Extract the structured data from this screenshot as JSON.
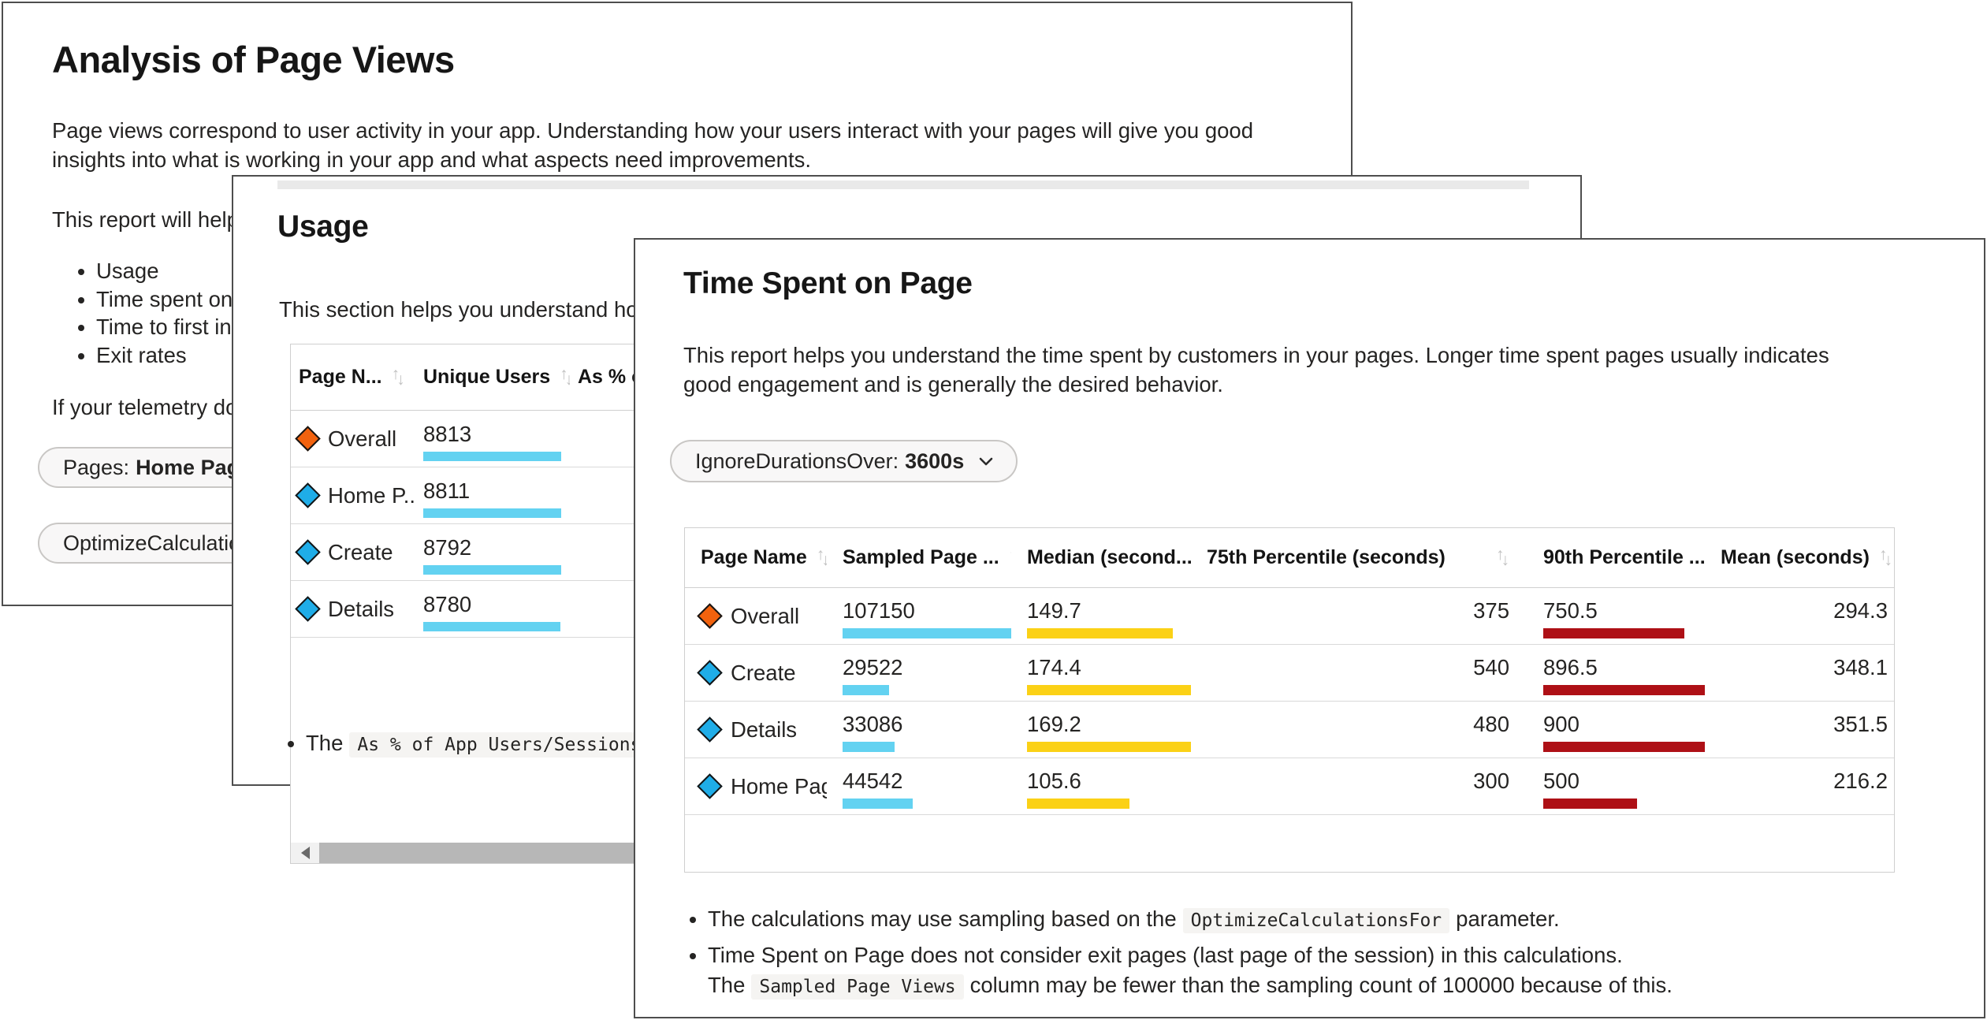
{
  "colors": {
    "bar_cyan": "#63d2f1",
    "bar_yellow": "#fbd116",
    "bar_red": "#ae1016",
    "series_overall": "#f2620e",
    "series_page": "#1fade8"
  },
  "icons": {
    "sort_up": "↑",
    "sort_down": "↓"
  },
  "analysis_card": {
    "title": "Analysis of Page Views",
    "intro": "Page views correspond to user activity in your app. Understanding how your users interact with your pages will give you good insights into what is working in your app and what aspects need improvements.",
    "report_help": "This report will help",
    "bullets": {
      "b0": "Usage",
      "b1": "Time spent on p",
      "b2": "Time to first int",
      "b3": "Exit rates"
    },
    "telemetry": "If your telemetry do",
    "pages_pill": {
      "label": "Pages:",
      "value": "Home Page, D"
    },
    "optimize_pill": {
      "label": "OptimizeCalculations"
    }
  },
  "usage_card": {
    "title": "Usage",
    "description": "This section helps you understand how",
    "table": {
      "headers": {
        "page": "Page N...",
        "users": "Unique Users",
        "pct": "As % of"
      },
      "rows": [
        {
          "page": "Overall",
          "users": 8813
        },
        {
          "page": "Home P...",
          "users": 8811
        },
        {
          "page": "Create",
          "users": 8792
        },
        {
          "page": "Details",
          "users": 8780
        }
      ]
    },
    "note_prefix": "The",
    "note_code": "As % of App Users/Sessions/V"
  },
  "time_spent_card": {
    "title": "Time Spent on Page",
    "description": "This report helps you understand the time spent by customers in your pages. Longer time spent pages usually indicates good engagement and is generally the desired behavior.",
    "filter_pill": {
      "label": "IgnoreDurationsOver:",
      "value": "3600s"
    },
    "table": {
      "headers": {
        "page": "Page Name",
        "sampled": "Sampled Page ...",
        "median": "Median (second...",
        "p75": "75th Percentile (seconds)",
        "p90": "90th Percentile ...",
        "mean": "Mean (seconds)"
      },
      "rows": [
        {
          "page": "Overall",
          "sampled": 107150,
          "median": 149.7,
          "p75": 375,
          "p90": 750.5,
          "mean": 294.3
        },
        {
          "page": "Create",
          "sampled": 29522,
          "median": 174.4,
          "p75": 540,
          "p90": 896.5,
          "mean": 348.1
        },
        {
          "page": "Details",
          "sampled": 33086,
          "median": 169.2,
          "p75": 480,
          "p90": 900,
          "mean": 351.5
        },
        {
          "page": "Home Page",
          "sampled": 44542,
          "median": 105.6,
          "p75": 300,
          "p90": 500,
          "mean": 216.2
        }
      ]
    },
    "notes": {
      "n1_prefix": "The calculations may use sampling based on the",
      "n1_code": "OptimizeCalculationsFor",
      "n1_suffix": "parameter.",
      "n2_prefix": "Time Spent on Page does not consider exit pages (last page of the session) in this calculations. The",
      "n2_code": "Sampled Page Views",
      "n2_suffix": "column may be fewer than the sampling count of 100000 because of this."
    }
  }
}
